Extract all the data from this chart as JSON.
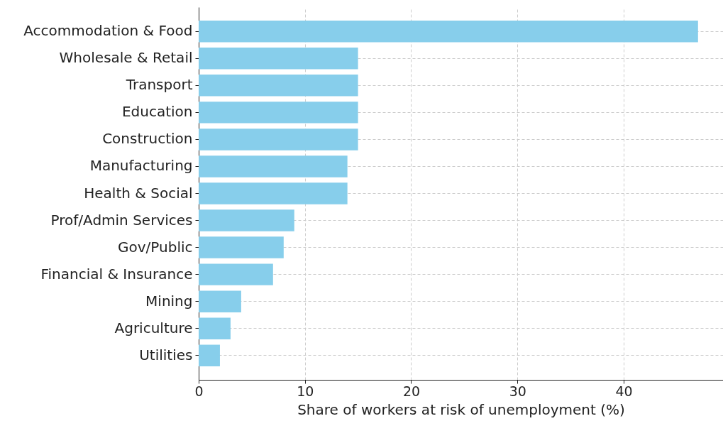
{
  "chart_data": {
    "type": "bar",
    "orientation": "horizontal",
    "xlabel": "Share of workers at risk of unemployment (%)",
    "categories": [
      "Accommodation & Food",
      "Wholesale & Retail",
      "Transport",
      "Education",
      "Construction",
      "Manufacturing",
      "Health & Social",
      "Prof/Admin Services",
      "Gov/Public",
      "Financial & Insurance",
      "Mining",
      "Agriculture",
      "Utilities"
    ],
    "values": [
      47,
      15,
      15,
      15,
      15,
      14,
      14,
      9,
      8,
      7,
      4,
      3,
      2
    ],
    "color": "#87ceeb",
    "xlim": [
      0,
      49.35
    ],
    "xticks": [
      0,
      10,
      20,
      30,
      40
    ],
    "grid": true
  }
}
